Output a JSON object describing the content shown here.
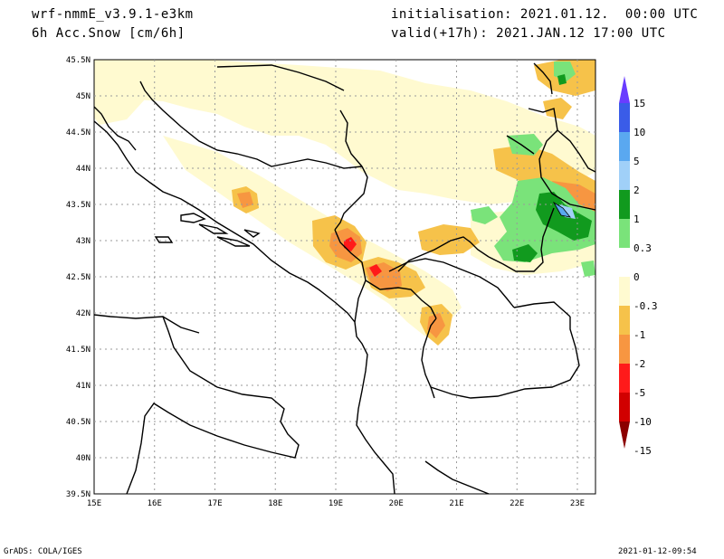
{
  "header": {
    "model": "wrf-nmmE_v3.9.1-e3km",
    "field": "6h Acc.Snow [cm/6h]",
    "init": "initialisation: 2021.01.12.  00:00 UTC",
    "valid": "valid(+17h): 2021.JAN.12 17:00 UTC"
  },
  "footer": {
    "credit": "GrADS: COLA/IGES",
    "timestamp": "2021-01-12-09:54"
  },
  "map": {
    "lat_labels": [
      "45.5N",
      "45N",
      "44.5N",
      "44N",
      "43.5N",
      "43N",
      "42.5N",
      "42N",
      "41.5N",
      "41N",
      "40.5N",
      "40N",
      "39.5N"
    ],
    "lon_labels": [
      "15E",
      "16E",
      "17E",
      "18E",
      "19E",
      "20E",
      "21E",
      "22E",
      "23E"
    ],
    "lon_range": [
      15,
      23.3
    ],
    "lat_range": [
      39.5,
      45.5
    ]
  },
  "colorbar": {
    "labels": [
      "15",
      "10",
      "5",
      "2",
      "1",
      "0.3",
      "0",
      "-0.3",
      "-1",
      "-2",
      "-5",
      "-10",
      "-15"
    ],
    "colors": [
      "#6a3cff",
      "#3a5ce8",
      "#5aa8f0",
      "#a0d0f8",
      "#119a1e",
      "#7ae37a",
      "#ffffff",
      "#fffad0",
      "#f6c24a",
      "#f79641",
      "#ff1a1a",
      "#d10000",
      "#8b0000"
    ]
  }
}
